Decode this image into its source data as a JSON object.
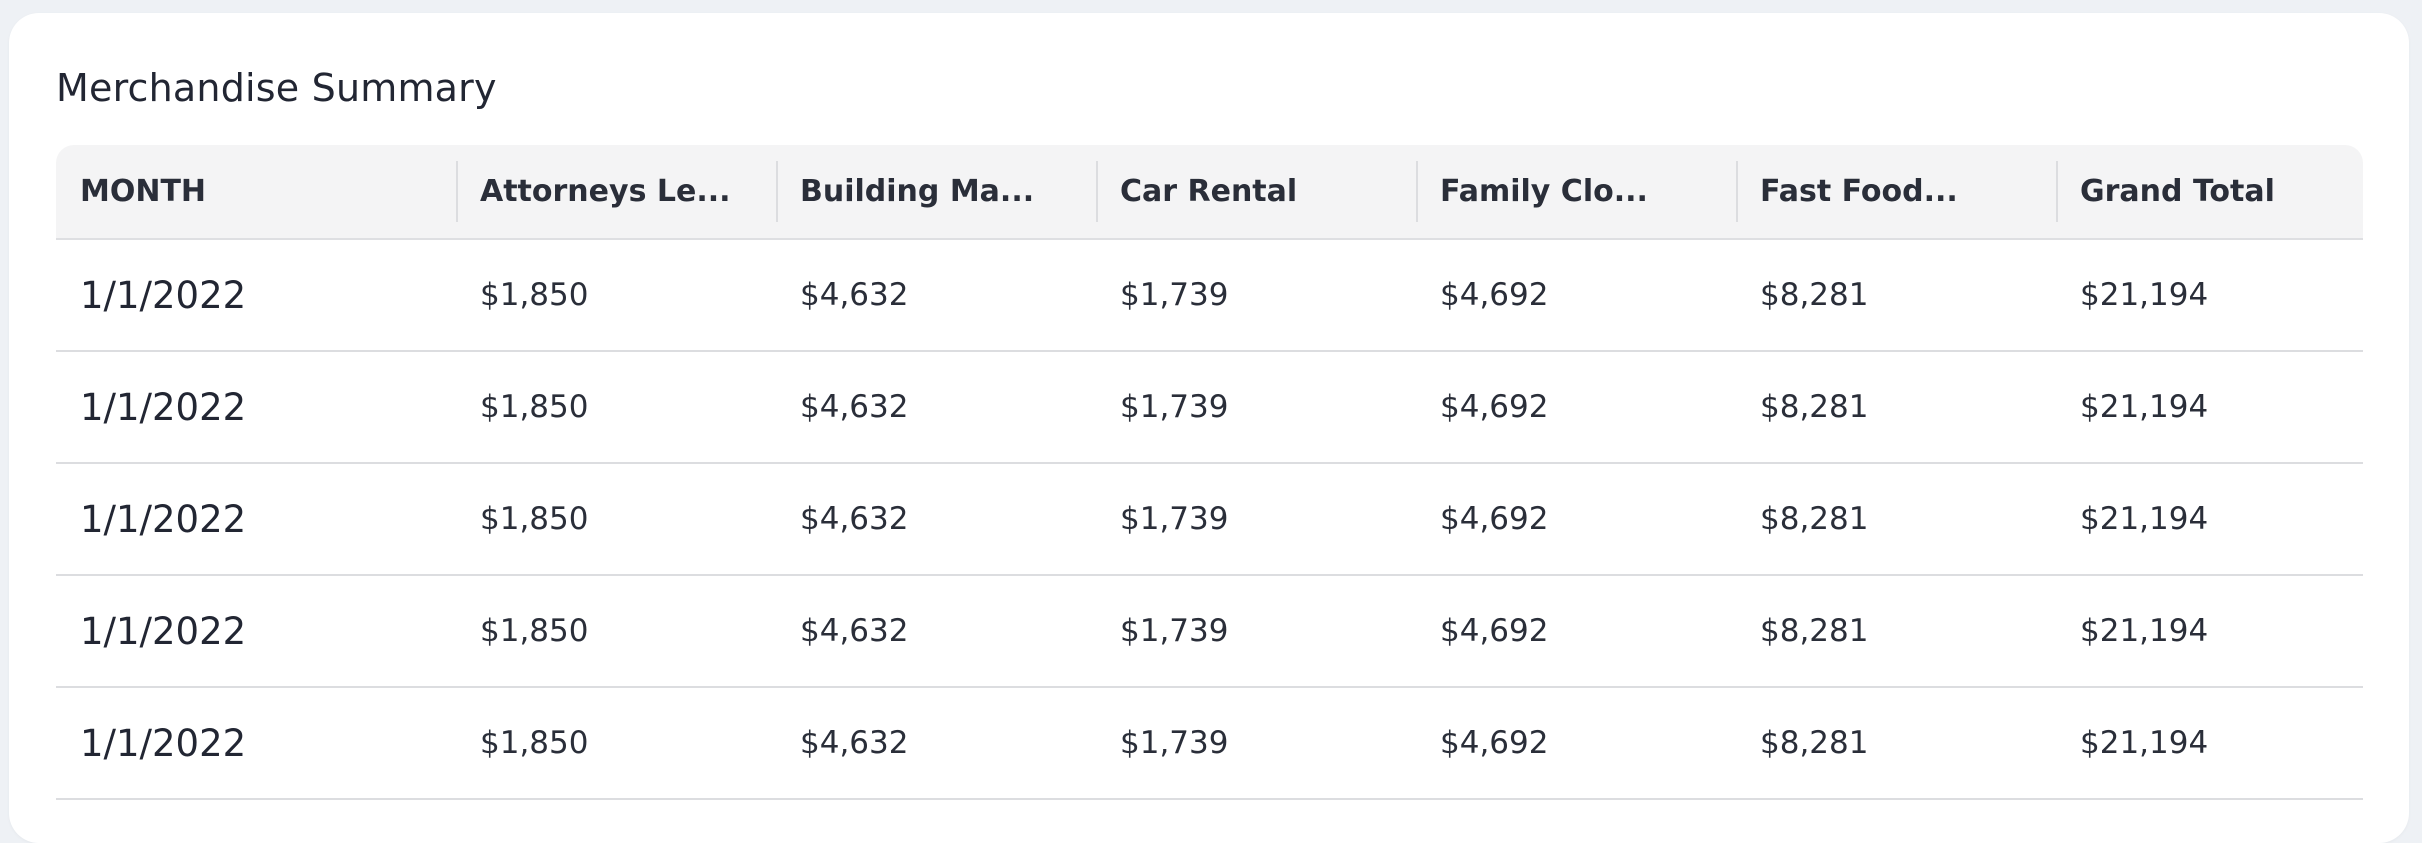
{
  "card": {
    "title": "Merchandise Summary"
  },
  "table": {
    "columns": [
      "MONTH",
      "Attorneys Le...",
      "Building Ma...",
      "Car Rental",
      "Family Clo...",
      "Fast Food...",
      "Grand Total"
    ],
    "rows": [
      [
        "1/1/2022",
        "$1,850",
        "$4,632",
        "$1,739",
        "$4,692",
        "$8,281",
        "$21,194"
      ],
      [
        "1/1/2022",
        "$1,850",
        "$4,632",
        "$1,739",
        "$4,692",
        "$8,281",
        "$21,194"
      ],
      [
        "1/1/2022",
        "$1,850",
        "$4,632",
        "$1,739",
        "$4,692",
        "$8,281",
        "$21,194"
      ],
      [
        "1/1/2022",
        "$1,850",
        "$4,632",
        "$1,739",
        "$4,692",
        "$8,281",
        "$21,194"
      ],
      [
        "1/1/2022",
        "$1,850",
        "$4,632",
        "$1,739",
        "$4,692",
        "$8,281",
        "$21,194"
      ]
    ]
  }
}
